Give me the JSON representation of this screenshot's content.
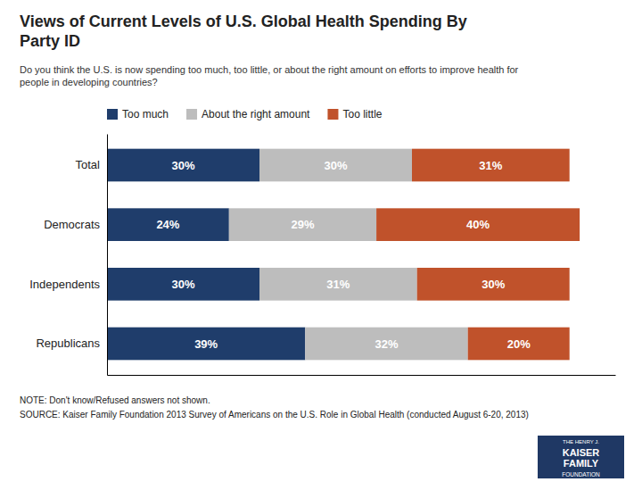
{
  "chart_data": {
    "type": "bar",
    "orientation": "horizontal",
    "stacked": true,
    "data_labels": true,
    "tick_labels": "y",
    "legend": "upper left",
    "title": "Views of Current Levels of U.S. Global Health Spending By\nParty ID",
    "subtitle": "Do you think the U.S. is now spending too much, too little, or about the right amount on efforts to improve health for\npeople in developing countries?",
    "annotations": [
      "NOTE: Don't know/Refused answers not shown.",
      "SOURCE: Kaiser Family Foundation 2013 Survey of Americans on the U.S. Role in Global Health (conducted August 6-20, 2013)",
      "THE HENRY J.",
      "KAISER",
      "FAMILY",
      "FOUNDATION"
    ],
    "categories": [
      "Total",
      "Democrats",
      "Independents",
      "Republicans"
    ],
    "xlim": [
      0,
      100
    ],
    "series": [
      {
        "name": "Too much",
        "color": "#1F3D6B",
        "values": [
          30,
          24,
          30,
          39
        ],
        "value_labels": [
          "30%",
          "24%",
          "30%",
          "39%"
        ]
      },
      {
        "name": "About the right amount",
        "color": "#BDBDBD",
        "values": [
          30,
          29,
          31,
          32
        ],
        "value_labels": [
          "30%",
          "29%",
          "31%",
          "32%"
        ]
      },
      {
        "name": "Too little",
        "color": "#C0522B",
        "values": [
          31,
          40,
          30,
          20
        ],
        "value_labels": [
          "31%",
          "40%",
          "30%",
          "20%"
        ]
      }
    ]
  }
}
